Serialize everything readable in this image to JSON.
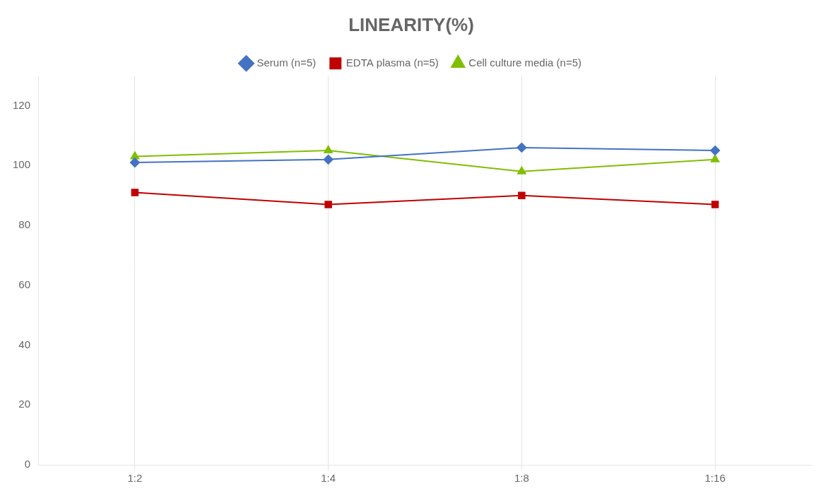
{
  "chart_data": {
    "type": "line",
    "title": "LINEARITY(%)",
    "categories": [
      "1:2",
      "1:4",
      "1:8",
      "1:16"
    ],
    "series": [
      {
        "name": "Serum (n=5)",
        "color": "#4472C4",
        "marker": "diamond",
        "values": [
          101,
          102,
          106,
          105
        ]
      },
      {
        "name": "EDTA plasma (n=5)",
        "color": "#C00000",
        "marker": "square",
        "values": [
          91,
          87,
          90,
          87
        ]
      },
      {
        "name": "Cell culture media (n=5)",
        "color": "#7FBF00",
        "marker": "triangle",
        "values": [
          103,
          105,
          98,
          102
        ]
      }
    ],
    "ylim": [
      0,
      130
    ],
    "yticks": [
      0,
      20,
      40,
      60,
      80,
      100,
      120
    ],
    "grid": "x",
    "legend": "top"
  }
}
